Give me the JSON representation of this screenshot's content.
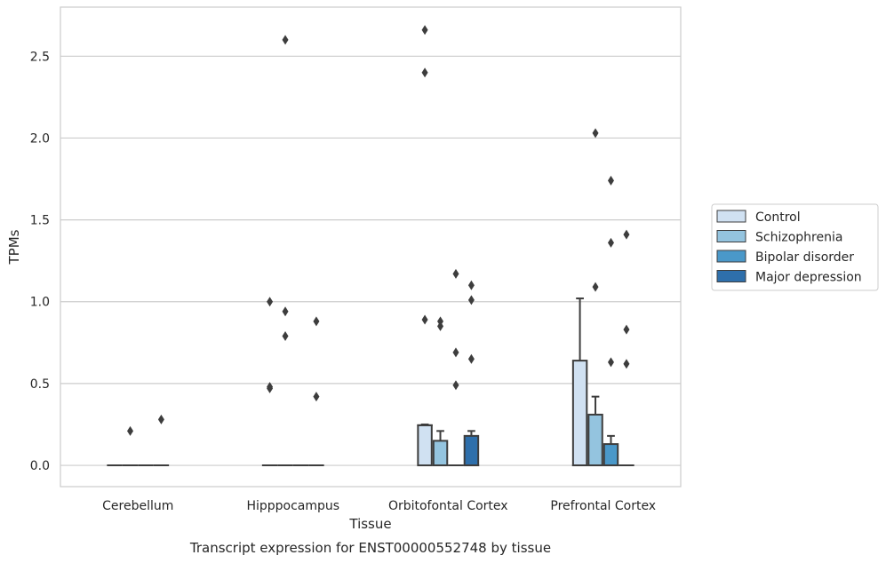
{
  "chart_data": {
    "type": "box",
    "title": "",
    "caption": "Transcript expression for ENST00000552748 by tissue",
    "xlabel": "Tissue",
    "ylabel": "TPMs",
    "ylim": [
      -0.13,
      2.8
    ],
    "yticks": [
      0.0,
      0.5,
      1.0,
      1.5,
      2.0,
      2.5
    ],
    "ytick_labels": [
      "0.0",
      "0.5",
      "1.0",
      "1.5",
      "2.0",
      "2.5"
    ],
    "grid": "horizontal",
    "legend_position": "right",
    "categories": [
      "Cerebellum",
      "Hipppocampus",
      "Orbitofontal Cortex",
      "Prefrontal Cortex"
    ],
    "series": [
      {
        "name": "Control",
        "color": "#d0e1f2",
        "boxes": [
          {
            "q1": 0,
            "median": 0,
            "q3": 0,
            "whisker_low": 0,
            "whisker_high": 0,
            "outliers": []
          },
          {
            "q1": 0,
            "median": 0,
            "q3": 0,
            "whisker_low": 0,
            "whisker_high": 0,
            "outliers": [
              1.0,
              0.48,
              0.47
            ]
          },
          {
            "q1": 0,
            "median": 0.245,
            "q3": 0.245,
            "whisker_low": 0,
            "whisker_high": 0.25,
            "outliers": [
              2.66,
              2.4,
              0.89
            ]
          },
          {
            "q1": 0,
            "median": 0,
            "q3": 0.64,
            "whisker_low": 0,
            "whisker_high": 1.02,
            "outliers": []
          }
        ]
      },
      {
        "name": "Schizophrenia",
        "color": "#94c4df",
        "boxes": [
          {
            "q1": 0,
            "median": 0,
            "q3": 0,
            "whisker_low": 0,
            "whisker_high": 0,
            "outliers": [
              0.21
            ]
          },
          {
            "q1": 0,
            "median": 0,
            "q3": 0,
            "whisker_low": 0,
            "whisker_high": 0,
            "outliers": [
              2.6,
              0.94,
              0.79
            ]
          },
          {
            "q1": 0,
            "median": 0,
            "q3": 0.15,
            "whisker_low": 0,
            "whisker_high": 0.21,
            "outliers": [
              0.88,
              0.85
            ]
          },
          {
            "q1": 0,
            "median": 0,
            "q3": 0.31,
            "whisker_low": 0,
            "whisker_high": 0.42,
            "outliers": [
              2.03,
              1.09
            ]
          }
        ]
      },
      {
        "name": "Bipolar disorder",
        "color": "#4a98c9",
        "boxes": [
          {
            "q1": 0,
            "median": 0,
            "q3": 0,
            "whisker_low": 0,
            "whisker_high": 0,
            "outliers": []
          },
          {
            "q1": 0,
            "median": 0,
            "q3": 0,
            "whisker_low": 0,
            "whisker_high": 0,
            "outliers": []
          },
          {
            "q1": 0,
            "median": 0,
            "q3": 0,
            "whisker_low": 0,
            "whisker_high": 0,
            "outliers": [
              1.17,
              0.69,
              0.49
            ]
          },
          {
            "q1": 0,
            "median": 0,
            "q3": 0.13,
            "whisker_low": 0,
            "whisker_high": 0.18,
            "outliers": [
              1.74,
              1.36,
              0.63
            ]
          }
        ]
      },
      {
        "name": "Major depression",
        "color": "#2e6fab",
        "boxes": [
          {
            "q1": 0,
            "median": 0,
            "q3": 0,
            "whisker_low": 0,
            "whisker_high": 0,
            "outliers": [
              0.28
            ]
          },
          {
            "q1": 0,
            "median": 0,
            "q3": 0,
            "whisker_low": 0,
            "whisker_high": 0,
            "outliers": [
              0.88,
              0.42
            ]
          },
          {
            "q1": 0,
            "median": 0,
            "q3": 0.18,
            "whisker_low": 0,
            "whisker_high": 0.21,
            "outliers": [
              1.1,
              1.01,
              0.65
            ]
          },
          {
            "q1": 0,
            "median": 0,
            "q3": 0,
            "whisker_low": 0,
            "whisker_high": 0,
            "outliers": [
              1.41,
              0.83,
              0.62
            ]
          }
        ]
      }
    ]
  }
}
